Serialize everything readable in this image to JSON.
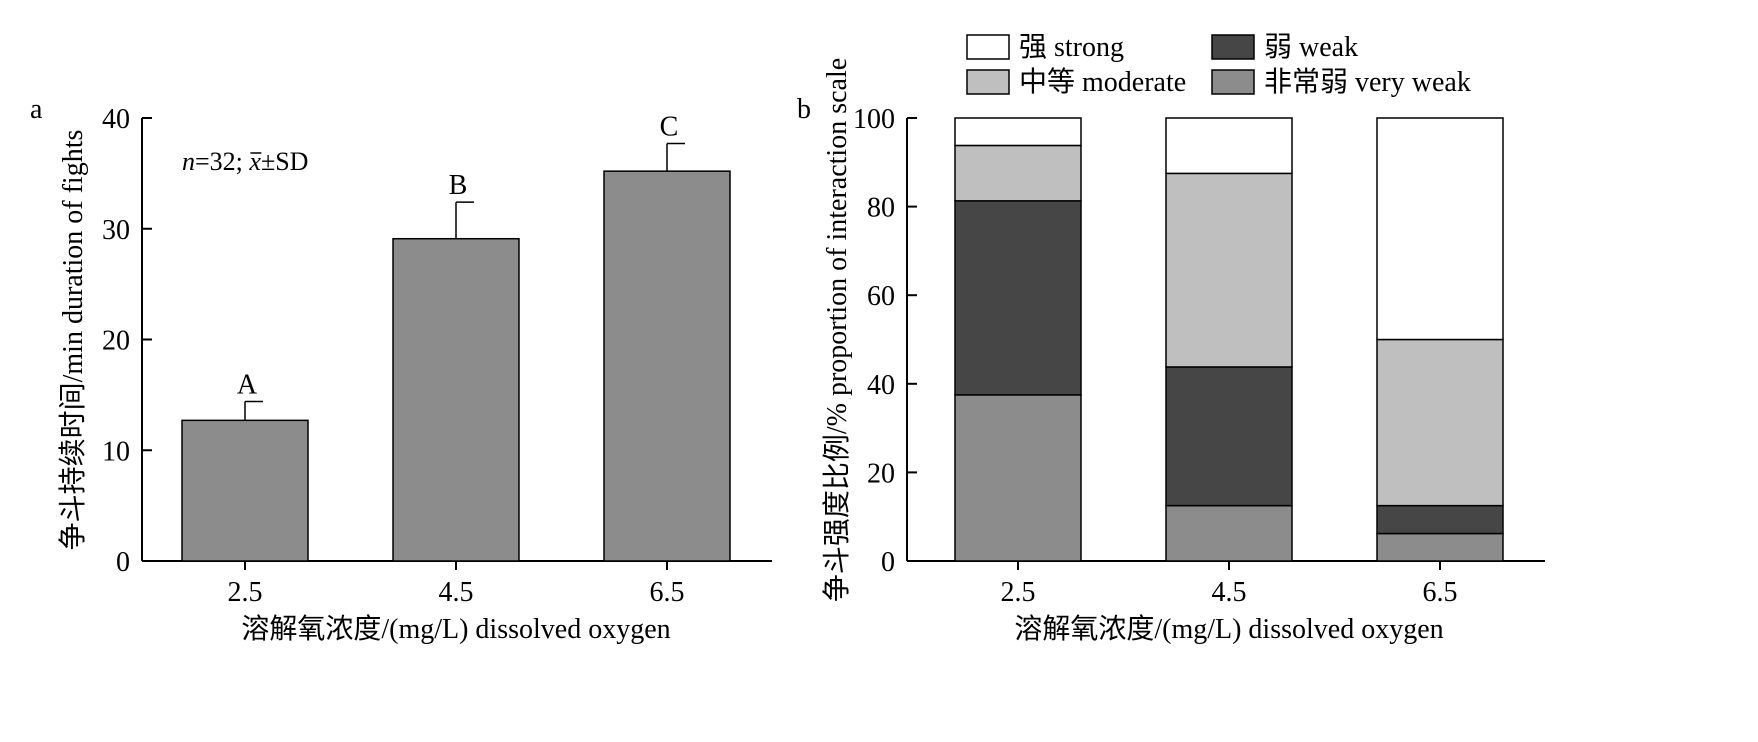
{
  "chart_data": [
    {
      "type": "bar",
      "panel_label": "a",
      "categories": [
        "2.5",
        "4.5",
        "6.5"
      ],
      "values": [
        12.7,
        29.1,
        35.2
      ],
      "error_sd": [
        1.7,
        3.3,
        2.5
      ],
      "significance_letters": [
        "A",
        "B",
        "C"
      ],
      "annotation": {
        "n_label": "n",
        "n_rest": "=32; ",
        "mean_symbol": "x",
        "sd_rest": "±SD"
      },
      "xlabel": "溶解氧浓度/(mg/L) dissolved oxygen",
      "ylabel": "争斗持续时间/min duration of fights",
      "ylim": [
        0,
        40
      ],
      "yticks": [
        0,
        10,
        20,
        30,
        40
      ],
      "bar_color": "#8c8c8c",
      "grid": false
    },
    {
      "type": "bar",
      "stacked": true,
      "panel_label": "b",
      "categories": [
        "2.5",
        "4.5",
        "6.5"
      ],
      "series": [
        {
          "name": "非常弱 very weak",
          "values": [
            37.5,
            12.5,
            6.2
          ],
          "color": "#8c8c8c"
        },
        {
          "name": "弱 weak",
          "values": [
            43.8,
            31.3,
            6.3
          ],
          "color": "#464646"
        },
        {
          "name": "中等 moderate",
          "values": [
            12.5,
            43.7,
            37.5
          ],
          "color": "#bfbfbf"
        },
        {
          "name": "强 strong",
          "values": [
            6.2,
            12.5,
            50.0
          ],
          "color": "#ffffff"
        }
      ],
      "legend_order": [
        3,
        1,
        2,
        0
      ],
      "legend_position": "top",
      "xlabel": "溶解氧浓度/(mg/L) dissolved oxygen",
      "ylabel": "争斗强度比例/% proportion of interaction scale",
      "ylim": [
        0,
        100
      ],
      "yticks": [
        0,
        20,
        40,
        60,
        80,
        100
      ],
      "grid": false
    }
  ]
}
